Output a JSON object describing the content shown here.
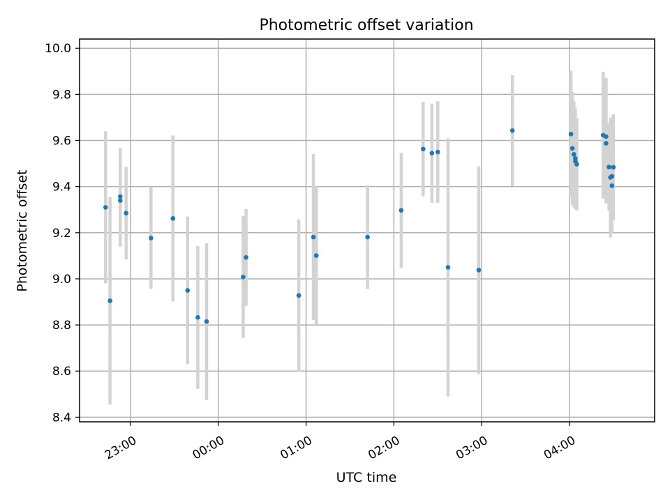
{
  "chart_data": {
    "type": "scatter",
    "title": "Photometric offset variation",
    "xlabel": "UTC time",
    "ylabel": "Photometric offset",
    "x_ticks": [
      "23:00",
      "00:00",
      "01:00",
      "02:00",
      "03:00",
      "04:00"
    ],
    "y_ticks": [
      "8.4",
      "8.6",
      "8.8",
      "9.0",
      "9.2",
      "9.4",
      "9.6",
      "9.8",
      "10.0"
    ],
    "ylim": [
      8.38,
      10.04
    ],
    "xlim_hours": [
      22.42,
      28.97
    ],
    "grid": true,
    "point_color": "#1f77b4",
    "errorbar_color": "#d3d3d3",
    "series": [
      {
        "points": [
          {
            "t": "22:43",
            "y": 9.31,
            "err": 0.33
          },
          {
            "t": "22:46",
            "y": 8.905,
            "err": 0.45
          },
          {
            "t": "22:53",
            "y": 9.357,
            "err": 0.21
          },
          {
            "t": "22:53",
            "y": 9.34,
            "err": 0.2
          },
          {
            "t": "22:57",
            "y": 9.285,
            "err": 0.2
          },
          {
            "t": "23:14",
            "y": 9.177,
            "err": 0.22
          },
          {
            "t": "23:29",
            "y": 9.262,
            "err": 0.36
          },
          {
            "t": "23:39",
            "y": 8.95,
            "err": 0.32
          },
          {
            "t": "23:46",
            "y": 8.833,
            "err": 0.31
          },
          {
            "t": "23:52",
            "y": 8.815,
            "err": 0.34
          },
          {
            "t": "00:17",
            "y": 9.008,
            "err": 0.265
          },
          {
            "t": "00:19",
            "y": 9.093,
            "err": 0.21
          },
          {
            "t": "00:55",
            "y": 8.928,
            "err": 0.33
          },
          {
            "t": "01:05",
            "y": 9.181,
            "err": 0.36
          },
          {
            "t": "01:07",
            "y": 9.101,
            "err": 0.3
          },
          {
            "t": "01:42",
            "y": 9.181,
            "err": 0.225
          },
          {
            "t": "02:05",
            "y": 9.297,
            "err": 0.25
          },
          {
            "t": "02:20",
            "y": 9.563,
            "err": 0.205
          },
          {
            "t": "02:26",
            "y": 9.545,
            "err": 0.215
          },
          {
            "t": "02:30",
            "y": 9.55,
            "err": 0.22
          },
          {
            "t": "02:37",
            "y": 9.05,
            "err": 0.56
          },
          {
            "t": "02:58",
            "y": 9.038,
            "err": 0.45
          },
          {
            "t": "03:21",
            "y": 9.643,
            "err": 0.24
          },
          {
            "t": "04:01",
            "y": 9.628,
            "err": 0.275
          },
          {
            "t": "04:02",
            "y": 9.566,
            "err": 0.245
          },
          {
            "t": "04:03",
            "y": 9.54,
            "err": 0.23
          },
          {
            "t": "04:04",
            "y": 9.522,
            "err": 0.22
          },
          {
            "t": "04:04",
            "y": 9.51,
            "err": 0.2
          },
          {
            "t": "04:05",
            "y": 9.497,
            "err": 0.2
          },
          {
            "t": "04:23",
            "y": 9.623,
            "err": 0.275
          },
          {
            "t": "04:25",
            "y": 9.617,
            "err": 0.255
          },
          {
            "t": "04:25",
            "y": 9.588,
            "err": 0.26
          },
          {
            "t": "04:27",
            "y": 9.485,
            "err": 0.19
          },
          {
            "t": "04:28",
            "y": 9.44,
            "err": 0.26
          },
          {
            "t": "04:29",
            "y": 9.445,
            "err": 0.245
          },
          {
            "t": "04:29",
            "y": 9.404,
            "err": 0.2
          },
          {
            "t": "04:30",
            "y": 9.484,
            "err": 0.23
          }
        ]
      }
    ]
  }
}
